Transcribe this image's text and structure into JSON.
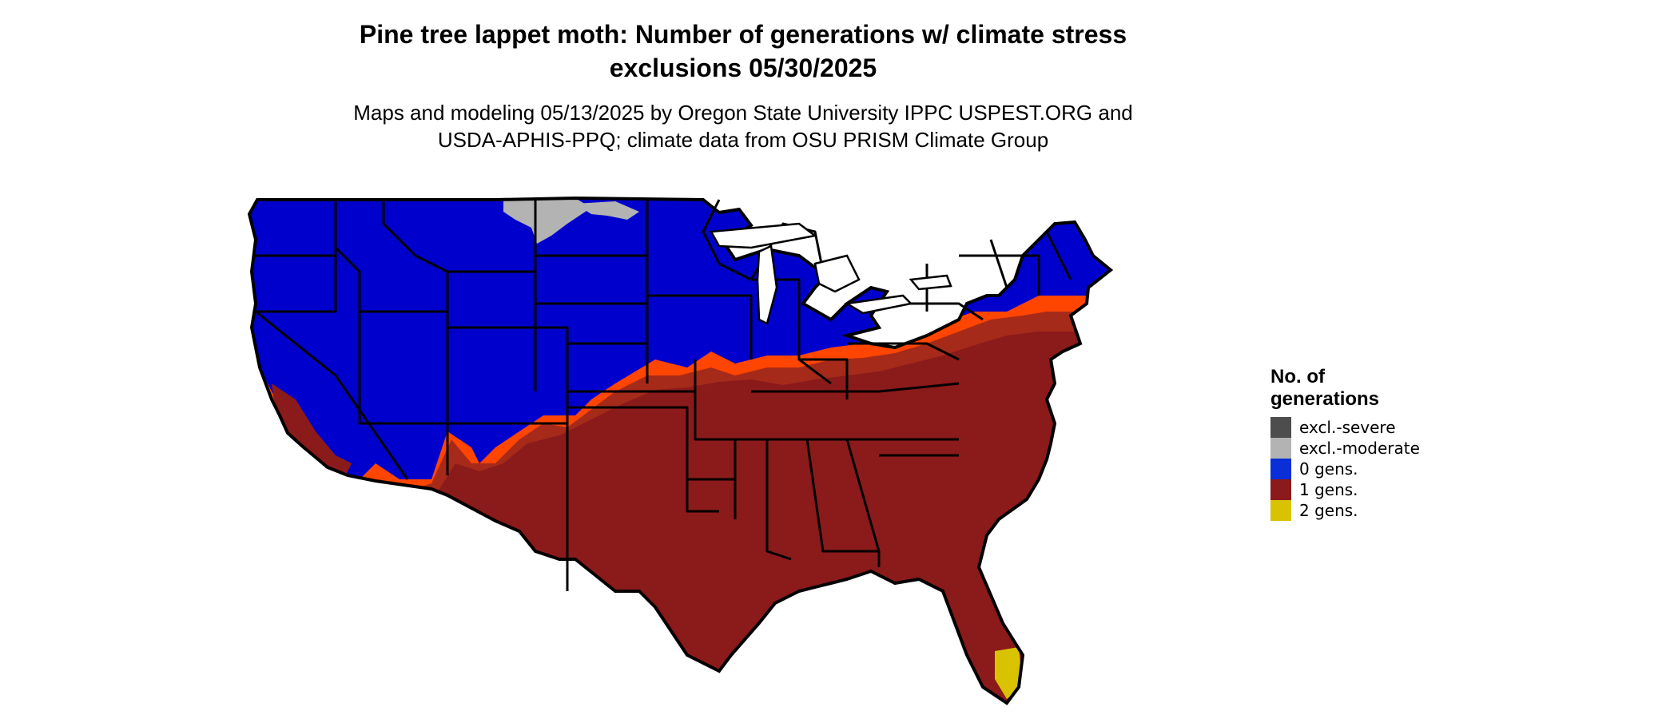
{
  "title_line1": "Pine tree lappet moth: Number of generations w/ climate stress",
  "title_line2": "exclusions 05/30/2025",
  "subtitle_line1": "Maps and modeling 05/13/2025 by Oregon State University IPPC USPEST.ORG and",
  "subtitle_line2": "USDA-APHIS-PPQ; climate data from OSU PRISM Climate Group",
  "legend": {
    "title_line1": "No. of",
    "title_line2": "generations",
    "items": [
      {
        "label": "excl.-severe",
        "color": "#4d4d4d"
      },
      {
        "label": "excl.-moderate",
        "color": "#b3b3b3"
      },
      {
        "label": "0 gens.",
        "color": "#0a2fd6"
      },
      {
        "label": "1 gens.",
        "color": "#8b1a1a"
      },
      {
        "label": "2 gens.",
        "color": "#d9c200"
      }
    ]
  },
  "map_colors": {
    "zero_gens": "#0000cd",
    "one_gen": "#8b1a1a",
    "one_gen_transition": "#ff4500",
    "one_gen_mid": "#a52a1a",
    "excl_moderate": "#b3b3b3",
    "excl_severe": "#4d4d4d",
    "two_gens": "#d9c200",
    "state_borders": "#000000"
  }
}
